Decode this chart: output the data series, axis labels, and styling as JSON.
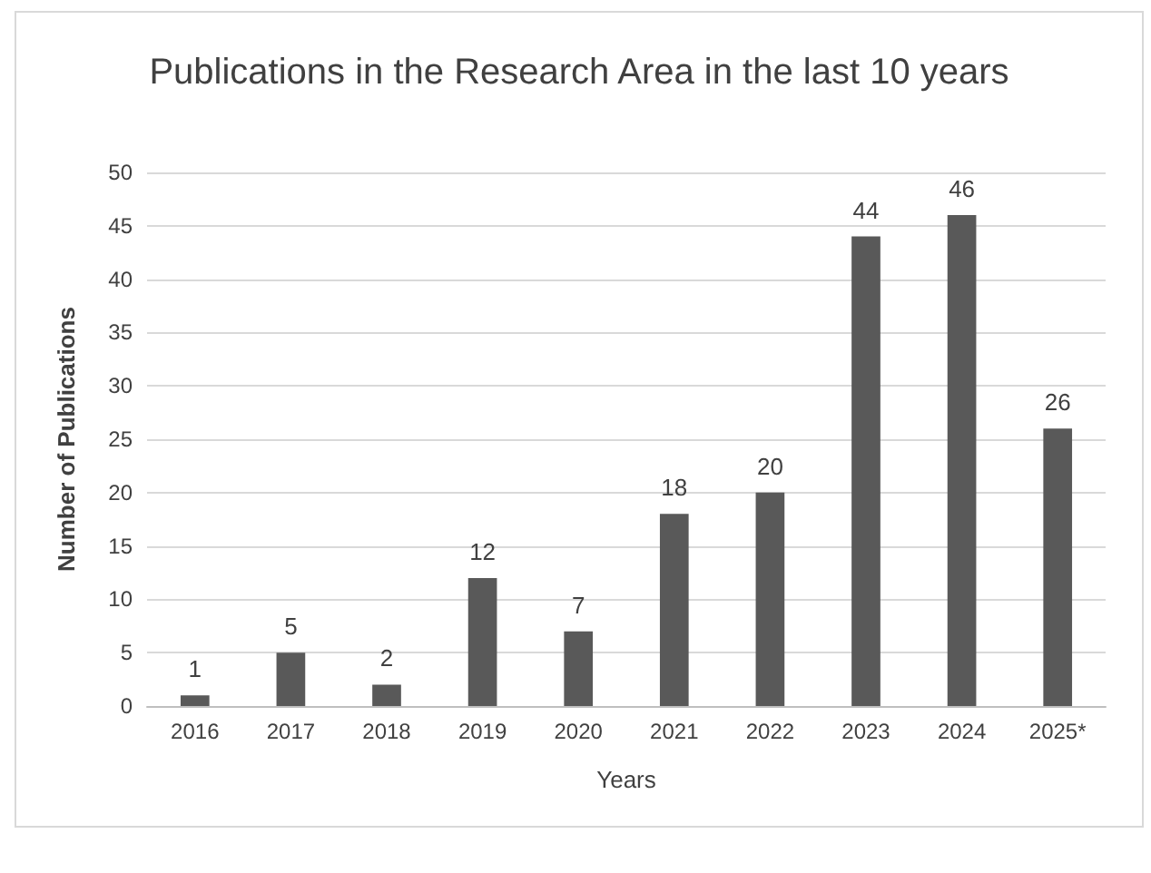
{
  "chart_data": {
    "type": "bar",
    "title": "Publications in the Research Area in the last 10 years",
    "xlabel": "Years",
    "ylabel": "Number of Publications",
    "categories": [
      "2016",
      "2017",
      "2018",
      "2019",
      "2020",
      "2021",
      "2022",
      "2023",
      "2024",
      "2025*"
    ],
    "values": [
      1,
      5,
      2,
      12,
      7,
      18,
      20,
      44,
      46,
      26
    ],
    "color": "#595959",
    "ylim": [
      0,
      50
    ],
    "yticks": [
      0,
      5,
      10,
      15,
      20,
      25,
      30,
      35,
      40,
      45,
      50
    ],
    "grid": "y",
    "data_labels": true
  }
}
